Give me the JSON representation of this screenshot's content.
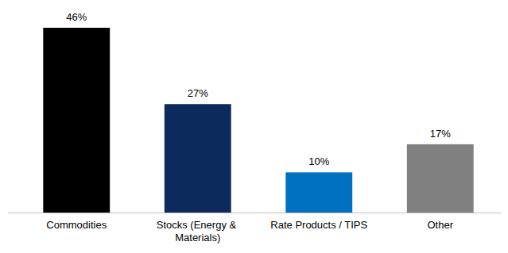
{
  "chart_data": {
    "type": "bar",
    "categories": [
      "Commodities",
      "Stocks (Energy & Materials)",
      "Rate Products / TIPS",
      "Other"
    ],
    "values": [
      46,
      27,
      10,
      17
    ],
    "value_labels": [
      "46%",
      "27%",
      "10%",
      "17%"
    ],
    "colors": [
      "#000000",
      "#0c2a5b",
      "#0070c0",
      "#808080"
    ],
    "ylim": [
      0,
      46
    ],
    "data_labels": true,
    "tick_labels": "x",
    "grid": false
  }
}
